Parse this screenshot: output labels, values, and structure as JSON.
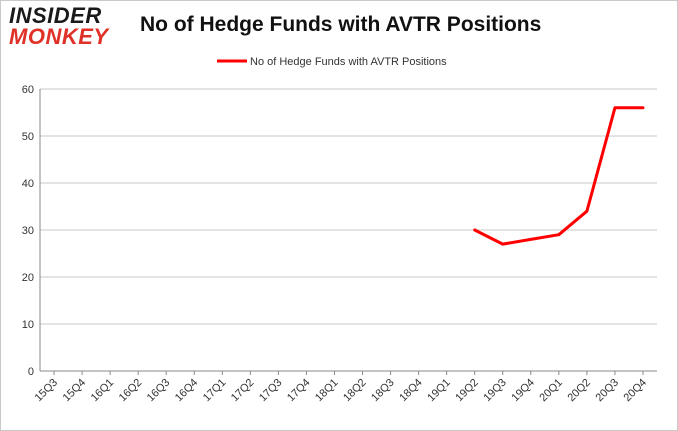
{
  "logo": {
    "line1": "INSIDER",
    "line2": "MONKEY"
  },
  "chart_data": {
    "type": "line",
    "title": "No of Hedge Funds with AVTR Positions",
    "xlabel": "",
    "ylabel": "",
    "categories": [
      "15Q3",
      "15Q4",
      "16Q1",
      "16Q2",
      "16Q3",
      "16Q4",
      "17Q1",
      "17Q2",
      "17Q3",
      "17Q4",
      "18Q1",
      "18Q2",
      "18Q3",
      "18Q4",
      "19Q1",
      "19Q2",
      "19Q3",
      "19Q4",
      "20Q1",
      "20Q2",
      "20Q3",
      "20Q4"
    ],
    "series": [
      {
        "name": "No of Hedge Funds with AVTR Positions",
        "color": "#ff0000",
        "values": [
          null,
          null,
          null,
          null,
          null,
          null,
          null,
          null,
          null,
          null,
          null,
          null,
          null,
          null,
          null,
          30,
          27,
          28,
          29,
          34,
          56,
          56
        ]
      }
    ],
    "ylim": [
      0,
      60
    ],
    "yticks": [
      0,
      10,
      20,
      30,
      40,
      50,
      60
    ],
    "grid": true,
    "legend": "top-center"
  }
}
